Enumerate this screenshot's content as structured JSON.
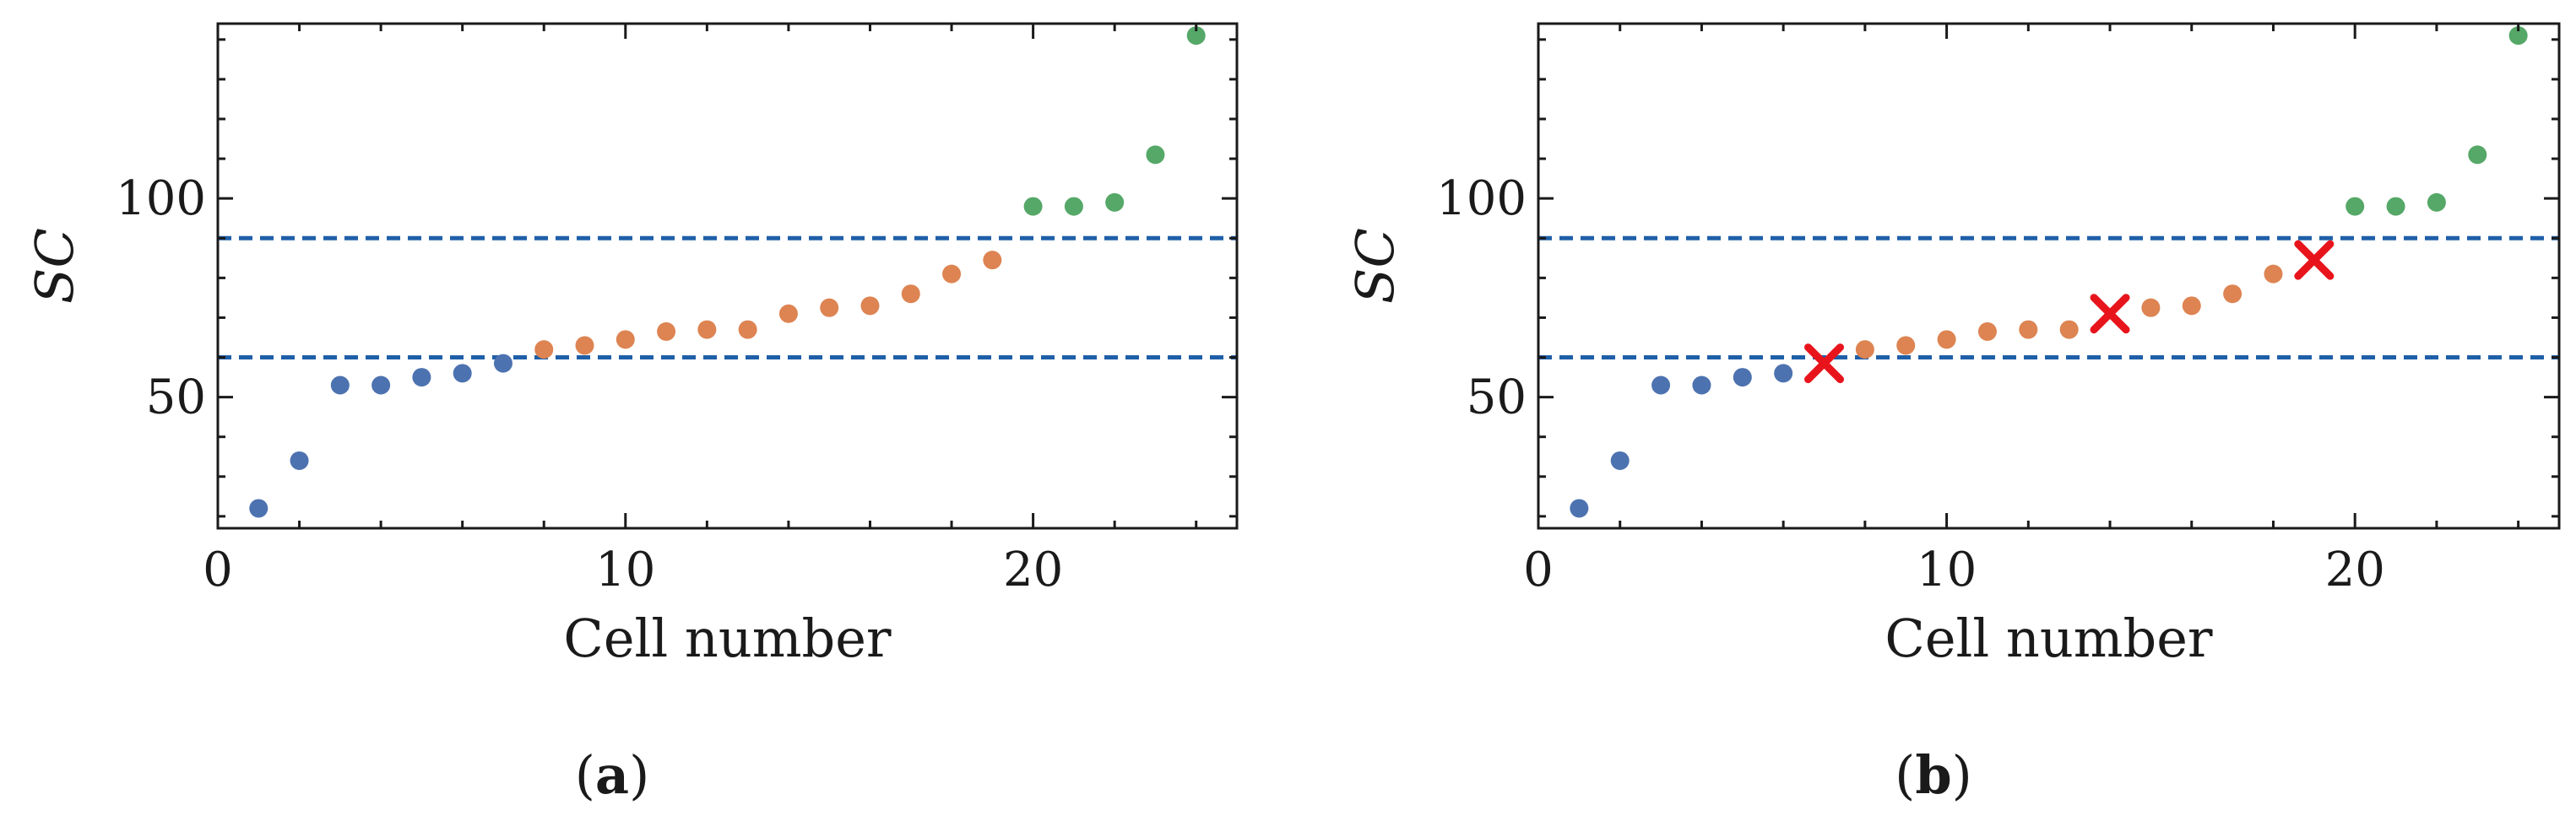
{
  "chart_data": [
    {
      "type": "scatter",
      "panel": "a",
      "caption": "a",
      "xlabel": "Cell number",
      "ylabel": "SC",
      "xlim": [
        0,
        25
      ],
      "ylim": [
        17,
        144
      ],
      "xticks": [
        0,
        10,
        20
      ],
      "yticks": [
        50,
        100
      ],
      "grid": false,
      "legend": "none",
      "thresholds": [
        90,
        60
      ],
      "threshold_style": "dashed",
      "threshold_color": "#1f5fa8",
      "series": [
        {
          "color": "#4c72b0",
          "points": [
            [
              1,
              22
            ],
            [
              2,
              34
            ],
            [
              3,
              53
            ],
            [
              4,
              53
            ],
            [
              5,
              55
            ],
            [
              6,
              56
            ],
            [
              7,
              58.5
            ]
          ]
        },
        {
          "color": "#dd8452",
          "points": [
            [
              8,
              62
            ],
            [
              9,
              63
            ],
            [
              10,
              64.5
            ],
            [
              11,
              66.5
            ],
            [
              12,
              67
            ],
            [
              13,
              67
            ],
            [
              14,
              71
            ],
            [
              15,
              72.5
            ],
            [
              16,
              73
            ],
            [
              17,
              76
            ],
            [
              18,
              81
            ],
            [
              19,
              84.5
            ]
          ]
        },
        {
          "color": "#55a868",
          "points": [
            [
              20,
              98
            ],
            [
              21,
              98
            ],
            [
              22,
              99
            ],
            [
              23,
              111
            ],
            [
              24,
              141
            ]
          ]
        }
      ],
      "markers": []
    },
    {
      "type": "scatter",
      "panel": "b",
      "caption": "b",
      "xlabel": "Cell number",
      "ylabel": "SC",
      "xlim": [
        0,
        25
      ],
      "ylim": [
        17,
        144
      ],
      "xticks": [
        0,
        10,
        20
      ],
      "yticks": [
        50,
        100
      ],
      "grid": false,
      "legend": "none",
      "thresholds": [
        90,
        60
      ],
      "threshold_style": "dashed",
      "threshold_color": "#1f5fa8",
      "series": [
        {
          "color": "#4c72b0",
          "points": [
            [
              1,
              22
            ],
            [
              2,
              34
            ],
            [
              3,
              53
            ],
            [
              4,
              53
            ],
            [
              5,
              55
            ],
            [
              6,
              56
            ]
          ]
        },
        {
          "color": "#dd8452",
          "points": [
            [
              8,
              62
            ],
            [
              9,
              63
            ],
            [
              10,
              64.5
            ],
            [
              11,
              66.5
            ],
            [
              12,
              67
            ],
            [
              13,
              67
            ],
            [
              15,
              72.5
            ],
            [
              16,
              73
            ],
            [
              17,
              76
            ],
            [
              18,
              81
            ]
          ]
        },
        {
          "color": "#55a868",
          "points": [
            [
              20,
              98
            ],
            [
              21,
              98
            ],
            [
              22,
              99
            ],
            [
              23,
              111
            ],
            [
              24,
              141
            ]
          ]
        }
      ],
      "markers": [
        {
          "symbol": "x",
          "color": "#e8141c",
          "points": [
            [
              7,
              58.5
            ],
            [
              14,
              71
            ],
            [
              19,
              84.5
            ]
          ]
        }
      ]
    }
  ]
}
